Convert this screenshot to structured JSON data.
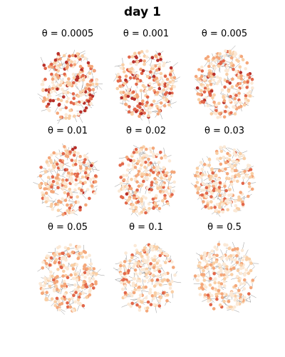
{
  "title": "day 1",
  "chart_data": {
    "type": "network-grid",
    "title": "day 1",
    "grid": {
      "rows": 3,
      "cols": 3
    },
    "panels": [
      {
        "label": "θ = 0.0005",
        "param_symbol": "θ",
        "param_value": 0.0005
      },
      {
        "label": "θ = 0.001",
        "param_symbol": "θ",
        "param_value": 0.001
      },
      {
        "label": "θ = 0.005",
        "param_symbol": "θ",
        "param_value": 0.005
      },
      {
        "label": "θ = 0.01",
        "param_symbol": "θ",
        "param_value": 0.01
      },
      {
        "label": "θ = 0.02",
        "param_symbol": "θ",
        "param_value": 0.02
      },
      {
        "label": "θ = 0.03",
        "param_symbol": "θ",
        "param_value": 0.03
      },
      {
        "label": "θ = 0.05",
        "param_symbol": "θ",
        "param_value": 0.05
      },
      {
        "label": "θ = 0.1",
        "param_symbol": "θ",
        "param_value": 0.1
      },
      {
        "label": "θ = 0.5",
        "param_symbol": "θ",
        "param_value": 0.5
      }
    ],
    "node_colormap": [
      "#fbe9d6",
      "#f9cfa6",
      "#f4a77a",
      "#e2674a",
      "#b8302a"
    ],
    "edge_color": "#333333",
    "axes": "off"
  }
}
